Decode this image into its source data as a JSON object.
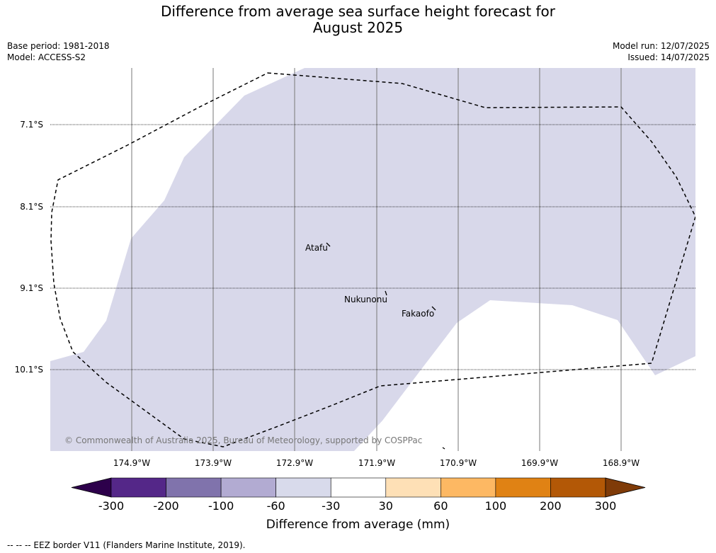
{
  "title_line1": "Difference from average sea surface height forecast for",
  "title_line2": "August 2025",
  "meta": {
    "base_period": "Base period: 1981-2018",
    "model": "Model: ACCESS-S2",
    "model_run": "Model run: 12/07/2025",
    "issued": "Issued: 14/07/2025"
  },
  "map": {
    "latitude_labels": [
      "7.1°S",
      "8.1°S",
      "9.1°S",
      "10.1°S"
    ],
    "longitude_labels": [
      "174.9°W",
      "173.9°W",
      "172.9°W",
      "171.9°W",
      "170.9°W",
      "169.9°W",
      "168.9°W"
    ],
    "places": [
      "Atafu",
      "Nukunonu",
      "Fakaofo"
    ],
    "copyright": "© Commonwealth of Australia 2025, Bureau of Meteorology, supported by COSPPac",
    "shaded_bin": "-60 to -30",
    "colors": {
      "shaded": "#d8d8ea",
      "eez": "#000000",
      "grid": "#777777"
    }
  },
  "colorbar": {
    "label": "Difference from average (mm)",
    "ticks": [
      "-300",
      "-200",
      "-100",
      "-60",
      "-30",
      "30",
      "60",
      "100",
      "200",
      "300"
    ],
    "colors": [
      "#2d004b",
      "#542788",
      "#8073ac",
      "#b2abd2",
      "#d8daeb",
      "#ffffff",
      "#fee0b6",
      "#fdb863",
      "#e08214",
      "#b35806",
      "#7f3b08"
    ]
  },
  "footnote": "--  --  -- EEZ border V11 (Flanders Marine Institute, 2019)."
}
